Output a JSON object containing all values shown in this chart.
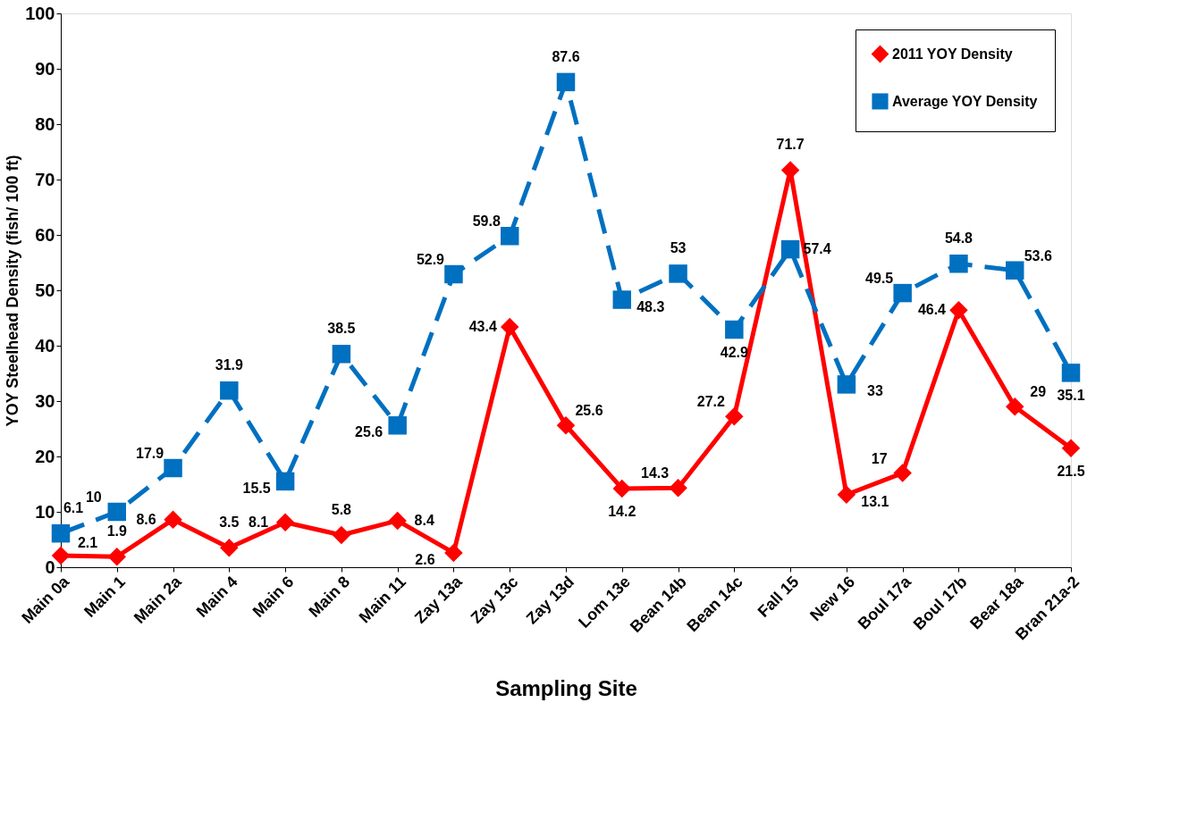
{
  "chart_data": {
    "type": "line",
    "xlabel": "Sampling Site",
    "ylabel": "YOY Steelhead Density (fish/ 100 ft)",
    "categories": [
      "Main 0a",
      "Main 1",
      "Main 2a",
      "Main 4",
      "Main 6",
      "Main 8",
      "Main 11",
      "Zay 13a",
      "Zay 13c",
      "Zay 13d",
      "Lom 13e",
      "Bean 14b",
      "Bean 14c",
      "Fall 15",
      "New 16",
      "Boul 17a",
      "Boul 17b",
      "Bear 18a",
      "Bran 21a-2"
    ],
    "series": [
      {
        "name": "2011 YOY Density",
        "color": "#ff0000",
        "marker": "diamond",
        "line_style": "solid",
        "values": [
          2.1,
          1.9,
          8.6,
          3.5,
          8.1,
          5.8,
          8.4,
          2.6,
          43.4,
          25.6,
          14.2,
          14.3,
          27.2,
          71.7,
          13.1,
          17,
          46.4,
          29,
          21.5
        ]
      },
      {
        "name": "Average YOY Density",
        "color": "#0070c0",
        "marker": "square",
        "line_style": "dashed",
        "values": [
          6.1,
          10,
          17.9,
          31.9,
          15.5,
          38.5,
          25.6,
          52.9,
          59.8,
          87.6,
          48.3,
          53,
          42.9,
          57.4,
          33,
          49.5,
          54.8,
          53.6,
          35.1
        ]
      }
    ],
    "ylim": [
      0,
      100
    ],
    "yticks": [
      0,
      10,
      20,
      30,
      40,
      50,
      60,
      70,
      80,
      90,
      100
    ],
    "grid": false,
    "legend": "top right",
    "data_labels": true
  }
}
